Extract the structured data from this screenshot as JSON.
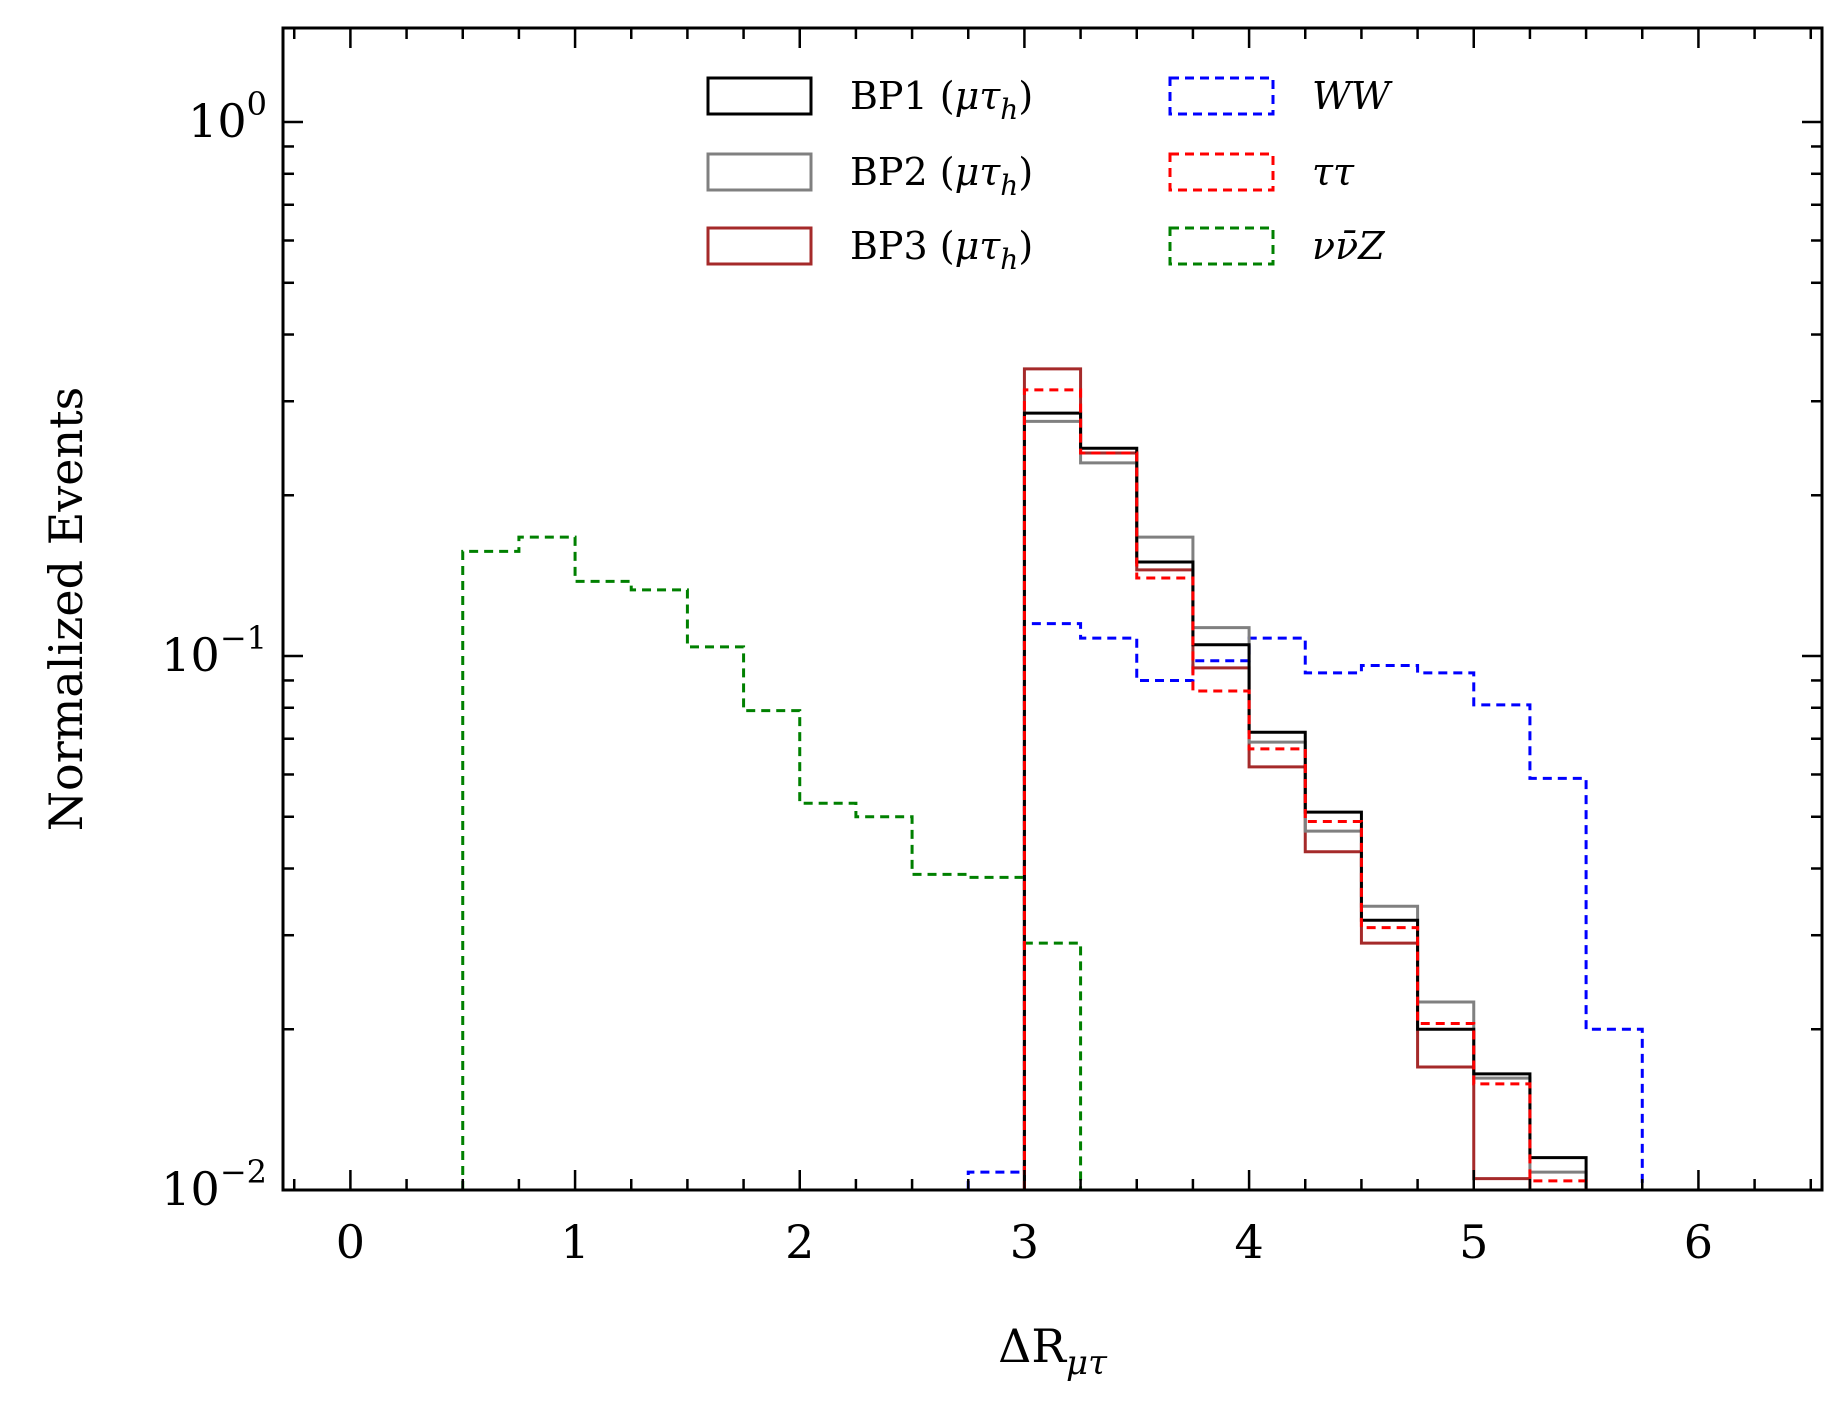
{
  "chart_data": {
    "type": "histogram-step",
    "xlabel": "ΔR",
    "xlabel_sub": "μτ",
    "ylabel": "Normalized Events",
    "xlim": [
      -0.3,
      6.55
    ],
    "ylim": [
      0.01,
      1.5
    ],
    "yscale": "log",
    "grid": false,
    "legend_position": "top-center",
    "x_ticks": [
      {
        "value": 0,
        "label": "0"
      },
      {
        "value": 1,
        "label": "1"
      },
      {
        "value": 2,
        "label": "2"
      },
      {
        "value": 3,
        "label": "3"
      },
      {
        "value": 4,
        "label": "4"
      },
      {
        "value": 5,
        "label": "5"
      },
      {
        "value": 6,
        "label": "6"
      }
    ],
    "y_ticks": [
      {
        "value": 1,
        "base": "10",
        "exp": "0"
      },
      {
        "value": 0.1,
        "base": "10",
        "exp": "−1"
      },
      {
        "value": 0.01,
        "base": "10",
        "exp": "−2"
      }
    ],
    "bin_width": 0.25,
    "series": [
      {
        "key": "bp1",
        "legend_text": "BP1 (",
        "legend_math": "μτ",
        "legend_sub": "h",
        "legend_close": ")",
        "color": "#000000",
        "style": "solid",
        "bin_edges_start": 3.0,
        "values": [
          0.285,
          0.245,
          0.15,
          0.105,
          0.072,
          0.051,
          0.032,
          0.02,
          0.0165,
          0.0115
        ]
      },
      {
        "key": "bp2",
        "legend_text": "BP2 (",
        "legend_math": "μτ",
        "legend_sub": "h",
        "legend_close": ")",
        "color": "#808080",
        "style": "solid",
        "bin_edges_start": 3.0,
        "values": [
          0.275,
          0.23,
          0.167,
          0.113,
          0.069,
          0.047,
          0.034,
          0.0225,
          0.0162,
          0.0108
        ]
      },
      {
        "key": "bp3",
        "legend_text": "BP3 (",
        "legend_math": "μτ",
        "legend_sub": "h",
        "legend_close": ")",
        "color": "#a52a2a",
        "style": "solid",
        "bin_edges_start": 3.0,
        "values": [
          0.345,
          0.24,
          0.145,
          0.095,
          0.062,
          0.043,
          0.029,
          0.017,
          0.0105,
          0.0096
        ]
      },
      {
        "key": "ww",
        "legend_text": "",
        "legend_math": "WW",
        "legend_sub": "",
        "legend_close": "",
        "color": "#0000ff",
        "style": "dashed",
        "bin_edges_start": 2.75,
        "values": [
          0.0108,
          0.115,
          0.108,
          0.09,
          0.098,
          0.108,
          0.093,
          0.096,
          0.093,
          0.081,
          0.059,
          0.02,
          0.0096
        ]
      },
      {
        "key": "tautau",
        "legend_text": "",
        "legend_math": "ττ",
        "legend_sub": "",
        "legend_close": "",
        "color": "#ff0000",
        "style": "dashed",
        "bin_edges_start": 3.0,
        "values": [
          0.315,
          0.24,
          0.14,
          0.086,
          0.067,
          0.049,
          0.031,
          0.0205,
          0.0158,
          0.0104
        ]
      },
      {
        "key": "nunuz",
        "legend_text": "",
        "legend_math": "νν̄Z",
        "legend_sub": "",
        "legend_close": "",
        "color": "#008000",
        "style": "dashed",
        "bin_edges_start": 0.5,
        "values": [
          0.157,
          0.167,
          0.138,
          0.133,
          0.104,
          0.079,
          0.053,
          0.05,
          0.039,
          0.0385,
          0.029
        ]
      }
    ]
  }
}
